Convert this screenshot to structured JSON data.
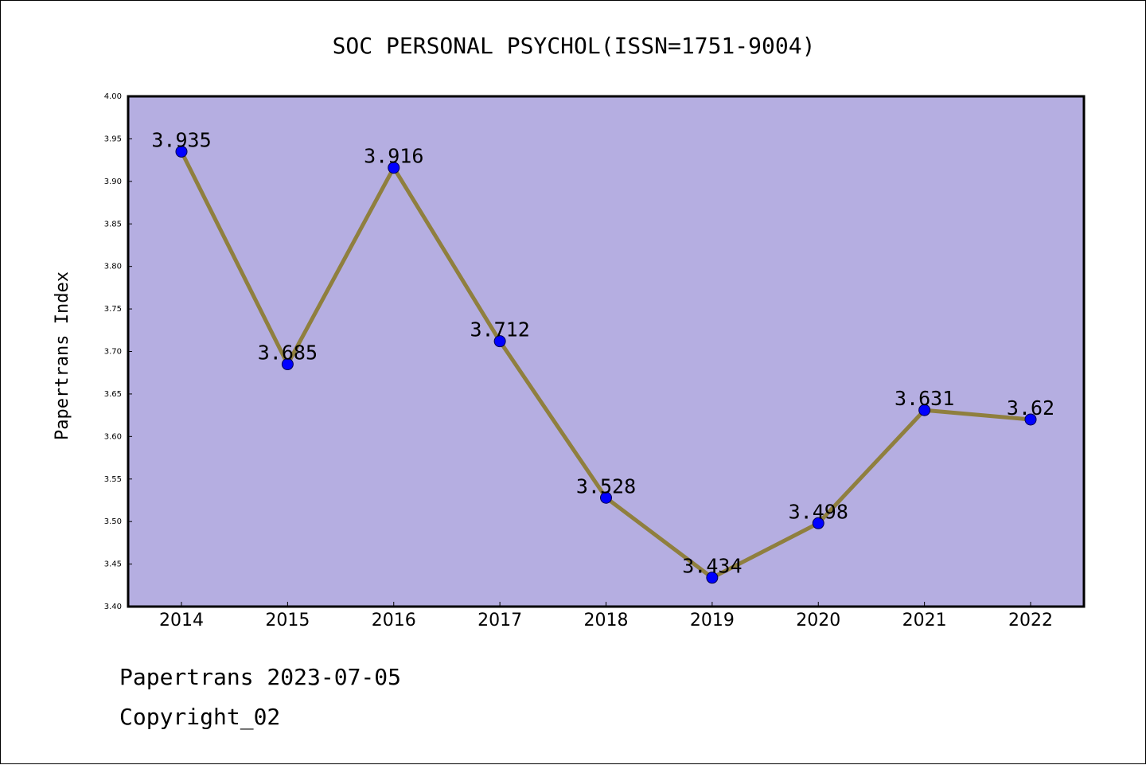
{
  "chart_data": {
    "type": "line",
    "title": "SOC PERSONAL PSYCHOL(ISSN=1751-9004)",
    "xlabel": "",
    "ylabel": "Papertrans Index",
    "categories": [
      "2014",
      "2015",
      "2016",
      "2017",
      "2018",
      "2019",
      "2020",
      "2021",
      "2022"
    ],
    "series": [
      {
        "values": [
          3.935,
          3.685,
          3.916,
          3.712,
          3.528,
          3.434,
          3.498,
          3.631,
          3.62
        ]
      }
    ],
    "data_labels": [
      "3.935",
      "3.685",
      "3.916",
      "3.712",
      "3.528",
      "3.434",
      "3.498",
      "3.631",
      "3.62"
    ],
    "ylim": [
      3.4,
      4.0
    ],
    "yticks": [
      "3.40",
      "3.45",
      "3.50",
      "3.55",
      "3.60",
      "3.65",
      "3.70",
      "3.75",
      "3.80",
      "3.85",
      "3.90",
      "3.95",
      "4.00"
    ],
    "grid": false,
    "legend": "none",
    "colors": {
      "plot_background": "#b5aee1",
      "line": "#8f7f3e",
      "marker": "#0000ff",
      "marker_edge": "#00004d"
    }
  },
  "footer": {
    "line1": "Papertrans 2023-07-05",
    "line2": "Copyright_02"
  }
}
